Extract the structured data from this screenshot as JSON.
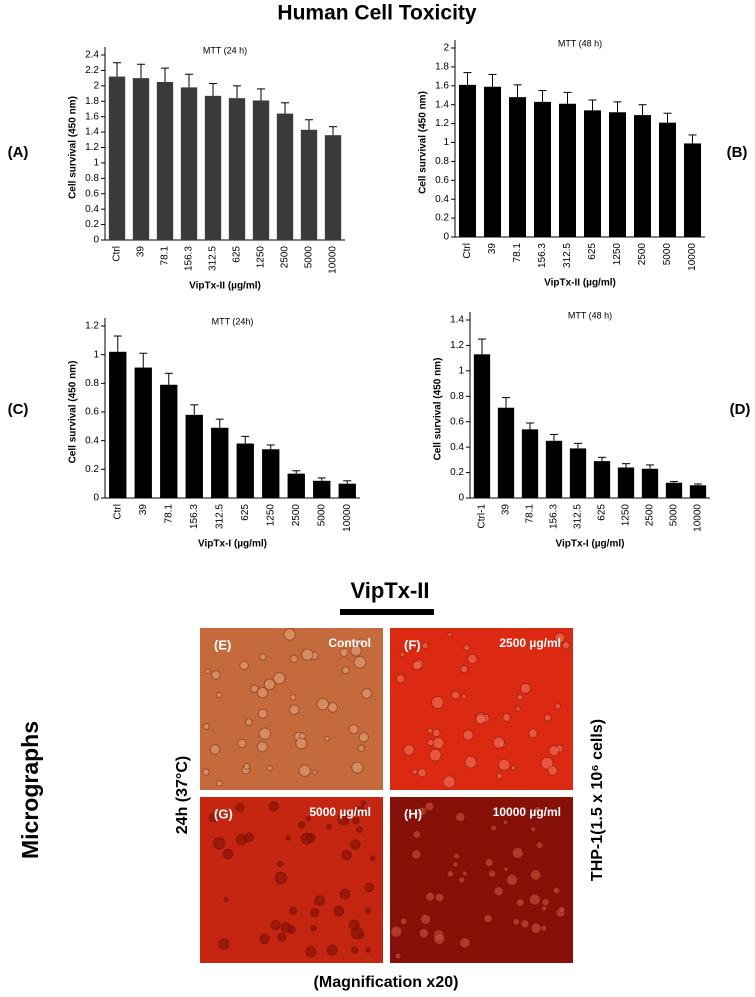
{
  "title": "Human Cell Toxicity",
  "chart_data": [
    {
      "type": "bar",
      "label": "(A)",
      "title": "MTT  (24 h)",
      "y_label": "Cell survival (450 nm)",
      "x_label": "VipTx-II (µg/ml)",
      "categories": [
        "Ctrl",
        "39",
        "78.1",
        "156.3",
        "312.5",
        "625",
        "1250",
        "2500",
        "5000",
        "10000"
      ],
      "values": [
        2.12,
        2.1,
        2.05,
        1.98,
        1.87,
        1.84,
        1.81,
        1.64,
        1.43,
        1.36
      ],
      "errors": [
        0.18,
        0.18,
        0.18,
        0.17,
        0.16,
        0.16,
        0.15,
        0.14,
        0.13,
        0.11
      ],
      "color": "#3a3a3a",
      "ylim": [
        0,
        2.4
      ],
      "yticks": [
        0,
        0.2,
        0.4,
        0.6,
        0.8,
        1,
        1.2,
        1.4,
        1.6,
        1.8,
        2,
        2.2,
        2.4
      ]
    },
    {
      "type": "bar",
      "label": "(B)",
      "title": "MTT  (48 h)",
      "y_label": "Cell survival (450 nm)",
      "x_label": "VipTx-II (µg/ml)",
      "categories": [
        "Ctrl",
        "39",
        "78.1",
        "156.3",
        "312.5",
        "625",
        "1250",
        "2500",
        "5000",
        "10000"
      ],
      "values": [
        1.61,
        1.59,
        1.48,
        1.43,
        1.41,
        1.34,
        1.32,
        1.29,
        1.21,
        0.99
      ],
      "errors": [
        0.13,
        0.13,
        0.13,
        0.12,
        0.12,
        0.11,
        0.11,
        0.11,
        0.1,
        0.09
      ],
      "color": "#000000",
      "ylim": [
        0,
        2
      ],
      "yticks": [
        0,
        0.2,
        0.4,
        0.6,
        0.8,
        1,
        1.2,
        1.4,
        1.6,
        1.8,
        2
      ]
    },
    {
      "type": "bar",
      "label": "(C)",
      "title": "MTT  (24h)",
      "y_label": "Cell survival (450 nm)",
      "x_label": "VipTx-I (µg/ml)",
      "categories": [
        "Ctrl",
        "39",
        "78.1",
        "156.3",
        "312.5",
        "625",
        "1250",
        "2500",
        "5000",
        "10000"
      ],
      "values": [
        1.02,
        0.91,
        0.79,
        0.58,
        0.49,
        0.38,
        0.34,
        0.17,
        0.12,
        0.1
      ],
      "errors": [
        0.11,
        0.1,
        0.08,
        0.07,
        0.06,
        0.05,
        0.03,
        0.02,
        0.02,
        0.02
      ],
      "color": "#000000",
      "ylim": [
        0,
        1.2
      ],
      "yticks": [
        0,
        0.2,
        0.4,
        0.6,
        0.8,
        1,
        1.2
      ]
    },
    {
      "type": "bar",
      "label": "(D)",
      "title": "MTT  (48 h)",
      "y_label": "Cell survival (450 nm)",
      "x_label": "VipTx-I (µg/ml)",
      "categories": [
        "Ctrl-1",
        "39",
        "78.1",
        "156.3",
        "312.5",
        "625",
        "1250",
        "2500",
        "5000",
        "10000"
      ],
      "values": [
        1.13,
        0.71,
        0.54,
        0.45,
        0.39,
        0.29,
        0.24,
        0.23,
        0.12,
        0.1
      ],
      "errors": [
        0.12,
        0.08,
        0.05,
        0.05,
        0.04,
        0.03,
        0.03,
        0.03,
        0.01,
        0.01
      ],
      "color": "#000000",
      "ylim": [
        0,
        1.4
      ],
      "yticks": [
        0,
        0.2,
        0.4,
        0.6,
        0.8,
        1,
        1.2,
        1.4
      ]
    }
  ],
  "micrographs": {
    "heading": "VipTx-II",
    "side_label": "Micrographs",
    "time_label": "24h (37°C)",
    "cell_label": "THP-1(1.5 x 10⁶ cells)",
    "panels": [
      {
        "label": "(E)",
        "caption": "Control"
      },
      {
        "label": "(F)",
        "caption": "2500 µg/ml"
      },
      {
        "label": "(G)",
        "caption": "5000 µg/ml"
      },
      {
        "label": "(H)",
        "caption": "10000 µg/ml"
      }
    ],
    "magnification": "(Magnification x20)"
  }
}
